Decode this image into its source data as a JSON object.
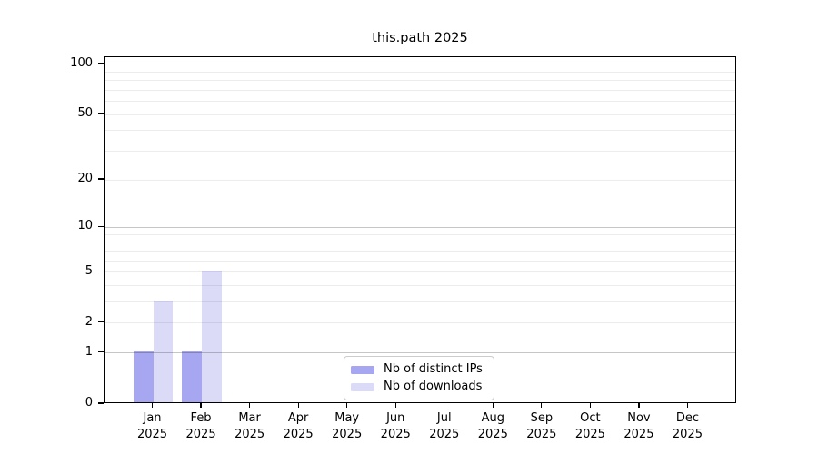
{
  "title": "this.path 2025",
  "legend": {
    "items": [
      {
        "label": "Nb of distinct IPs",
        "color": "#a6a6f1"
      },
      {
        "label": "Nb of downloads",
        "color": "#dbdbf7"
      }
    ]
  },
  "chart_data": {
    "type": "bar",
    "title": "this.path 2025",
    "categories": [
      "Jan",
      "Feb",
      "Mar",
      "Apr",
      "May",
      "Jun",
      "Jul",
      "Aug",
      "Sep",
      "Oct",
      "Nov",
      "Dec"
    ],
    "x_tick_year_line": "2025",
    "series": [
      {
        "name": "Nb of distinct IPs",
        "color": "#a6a6f1",
        "values": [
          1,
          1,
          0,
          0,
          0,
          0,
          0,
          0,
          0,
          0,
          0,
          0
        ]
      },
      {
        "name": "Nb of downloads",
        "color": "#dbdbf7",
        "values": [
          3,
          5,
          0,
          0,
          0,
          0,
          0,
          0,
          0,
          0,
          0,
          0
        ]
      }
    ],
    "xlabel": "",
    "ylabel": "",
    "yscale": "log10(1+x)",
    "ylim": [
      0,
      110
    ],
    "y_ticks": [
      0,
      1,
      2,
      5,
      10,
      20,
      50,
      100
    ],
    "y_minor_gridlines": [
      3,
      4,
      6,
      7,
      8,
      9,
      30,
      40,
      60,
      70,
      80,
      90
    ],
    "grid": "horizontal, drawn over bars; darker lines at 1/10/100",
    "legend_position": "lower center (inside axes)"
  }
}
